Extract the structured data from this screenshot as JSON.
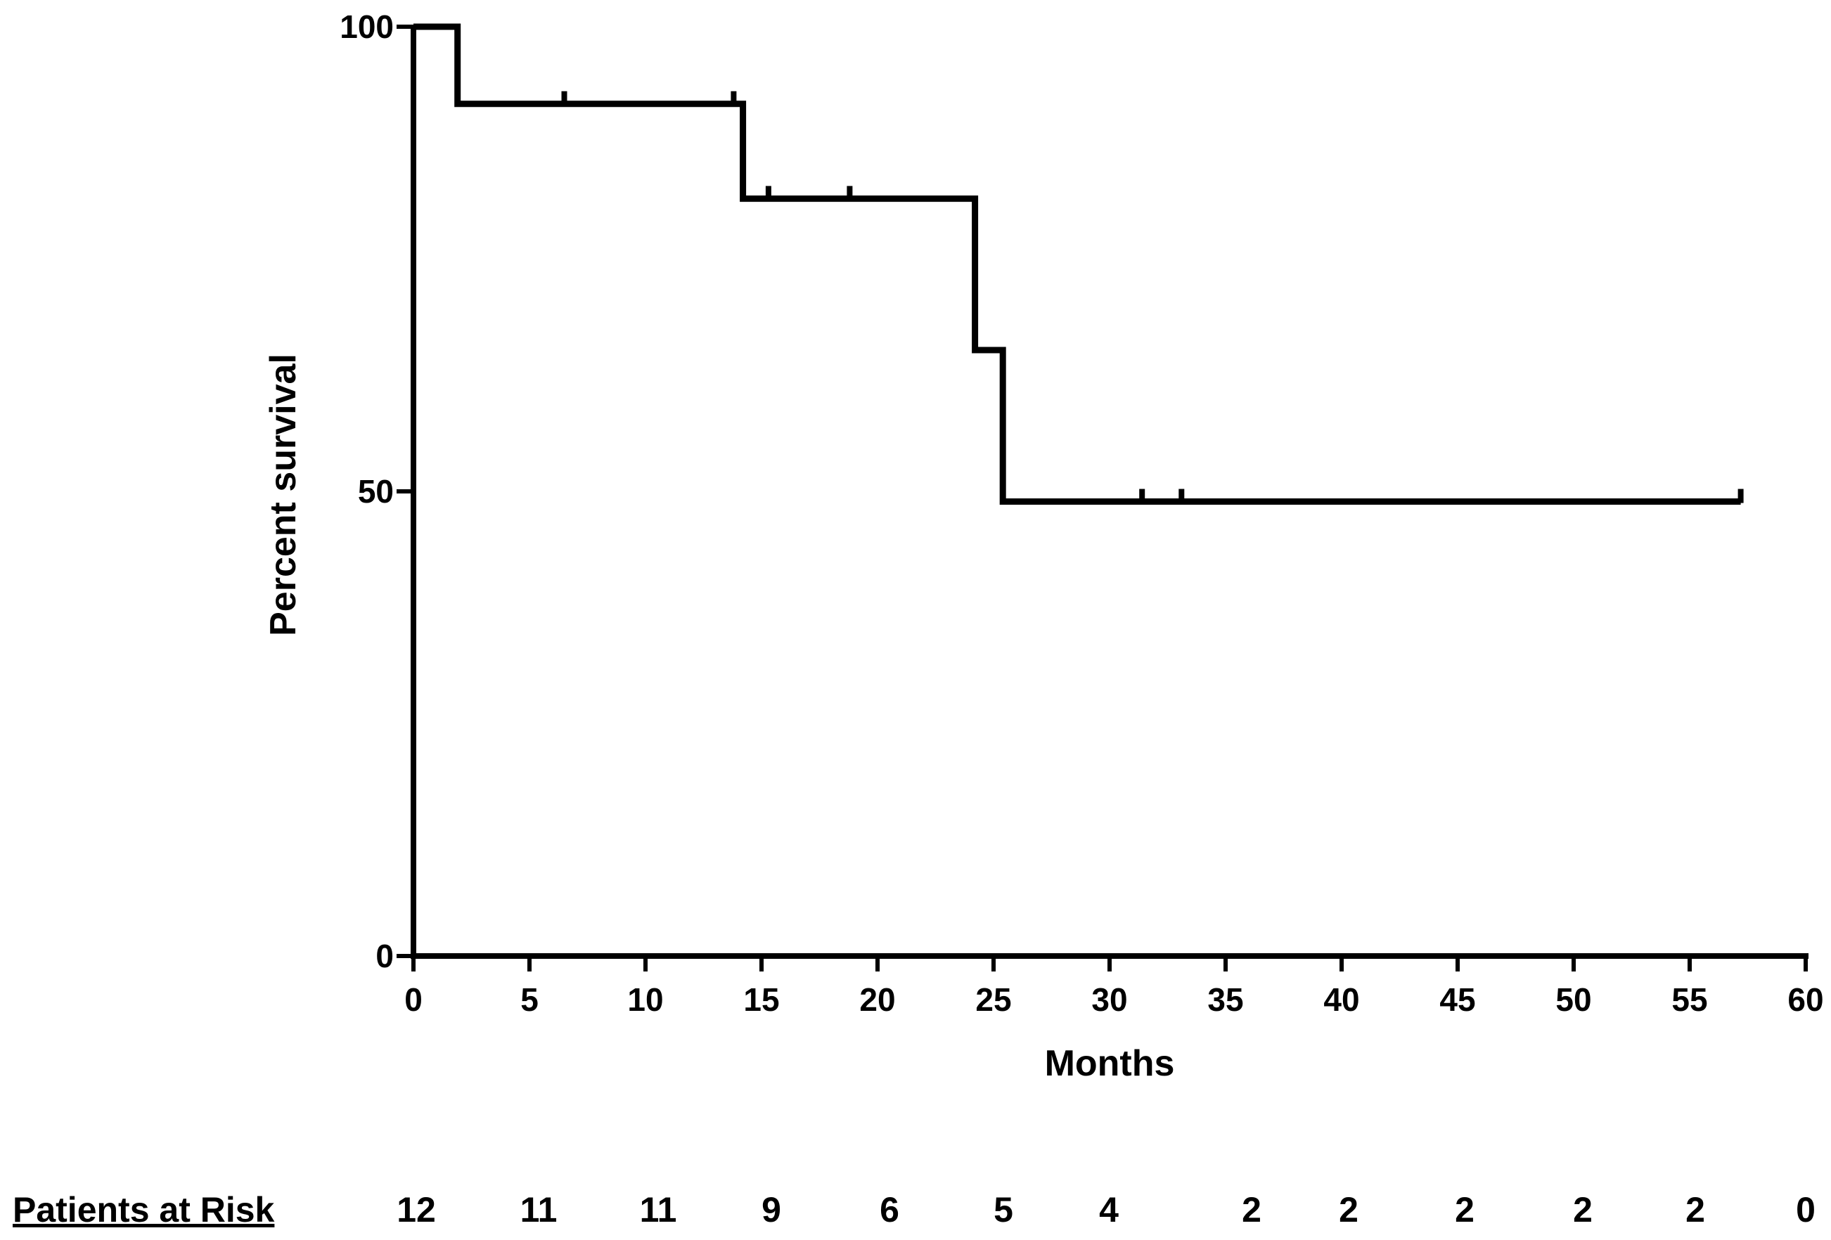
{
  "chart_data": {
    "type": "line",
    "subtype": "kaplan-meier",
    "title": "",
    "xlabel": "Months",
    "ylabel": "Percent survival",
    "xlim": [
      0,
      60
    ],
    "ylim": [
      0,
      100
    ],
    "x_ticks": [
      "0",
      "5",
      "10",
      "15",
      "20",
      "25",
      "30",
      "35",
      "40",
      "45",
      "50",
      "55",
      "60"
    ],
    "y_ticks": [
      "0",
      "50",
      "100"
    ],
    "grid": false,
    "series": [
      {
        "steps": [
          {
            "x": 0,
            "y": 100
          },
          {
            "x": 1.9,
            "y": 91.7
          },
          {
            "x": 14.2,
            "y": 81.5
          },
          {
            "x": 24.2,
            "y": 65.2
          },
          {
            "x": 25.4,
            "y": 48.9
          },
          {
            "x": 57.2,
            "y": 48.9
          }
        ],
        "censored": [
          {
            "x": 6.5,
            "y": 91.7
          },
          {
            "x": 13.8,
            "y": 91.7
          },
          {
            "x": 15.3,
            "y": 81.5
          },
          {
            "x": 18.8,
            "y": 81.5
          },
          {
            "x": 31.4,
            "y": 48.9
          },
          {
            "x": 33.1,
            "y": 48.9
          },
          {
            "x": 57.2,
            "y": 48.9
          }
        ]
      }
    ],
    "risk_table": {
      "label": "Patients at Risk",
      "values": [
        "12",
        "11",
        "11",
        "9",
        "6",
        "5",
        "4",
        "2",
        "2",
        "2",
        "2",
        "2",
        "0"
      ]
    }
  }
}
